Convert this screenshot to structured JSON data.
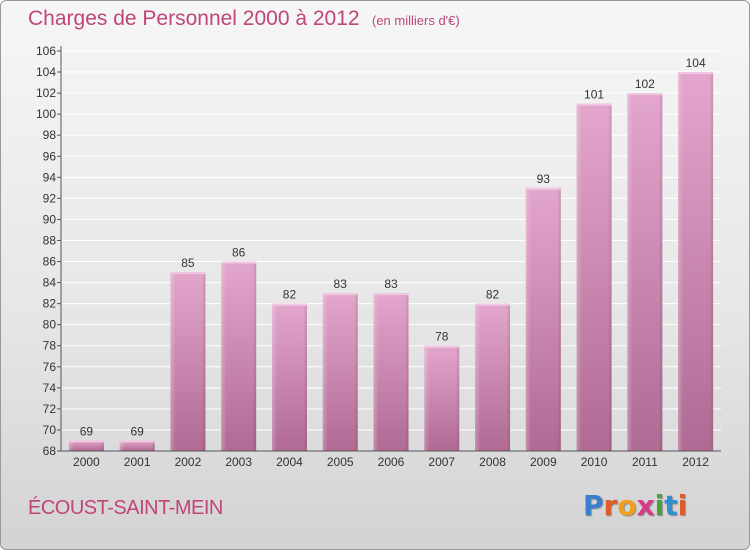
{
  "header": {
    "title": "Charges de Personnel 2000 à 2012",
    "subtitle": "(en milliers d'€)"
  },
  "footer": {
    "commune": "ÉCOUST-SAINT-MEIN",
    "logo_text": "Proxiti",
    "logo_letters": [
      {
        "ch": "P",
        "color": "#3a7fd0"
      },
      {
        "ch": "r",
        "color": "#e05a2a"
      },
      {
        "ch": "o",
        "color": "#f0a020"
      },
      {
        "ch": "x",
        "color": "#d63b8a"
      },
      {
        "ch": "i",
        "color": "#4aa03a"
      },
      {
        "ch": "t",
        "color": "#2f8fd0"
      },
      {
        "ch": "i",
        "color": "#e05a2a"
      }
    ]
  },
  "colors": {
    "bar_top": "#e3a6cc",
    "bar_bottom": "#b06a93",
    "bar_cap": "#f0c6e0",
    "axis": "#555555",
    "grid": "#ffffff",
    "title": "#c0457b"
  },
  "chart_data": {
    "type": "bar",
    "title": "Charges de Personnel 2000 à 2012",
    "subtitle": "(en milliers d'€)",
    "categories": [
      "2000",
      "2001",
      "2002",
      "2003",
      "2004",
      "2005",
      "2006",
      "2007",
      "2008",
      "2009",
      "2010",
      "2011",
      "2012"
    ],
    "values": [
      69,
      69,
      85,
      86,
      82,
      83,
      83,
      78,
      82,
      93,
      101,
      102,
      104
    ],
    "data_labels": [
      "69",
      "69",
      "85",
      "86",
      "82",
      "83",
      "83",
      "78",
      "82",
      "93",
      "101",
      "102",
      "104"
    ],
    "ylim": [
      68,
      106
    ],
    "yticks": [
      68,
      70,
      72,
      74,
      76,
      78,
      80,
      82,
      84,
      86,
      88,
      90,
      92,
      94,
      96,
      98,
      100,
      102,
      104,
      106
    ],
    "xlabel": "",
    "ylabel": "",
    "grid": true,
    "legend": "none"
  }
}
